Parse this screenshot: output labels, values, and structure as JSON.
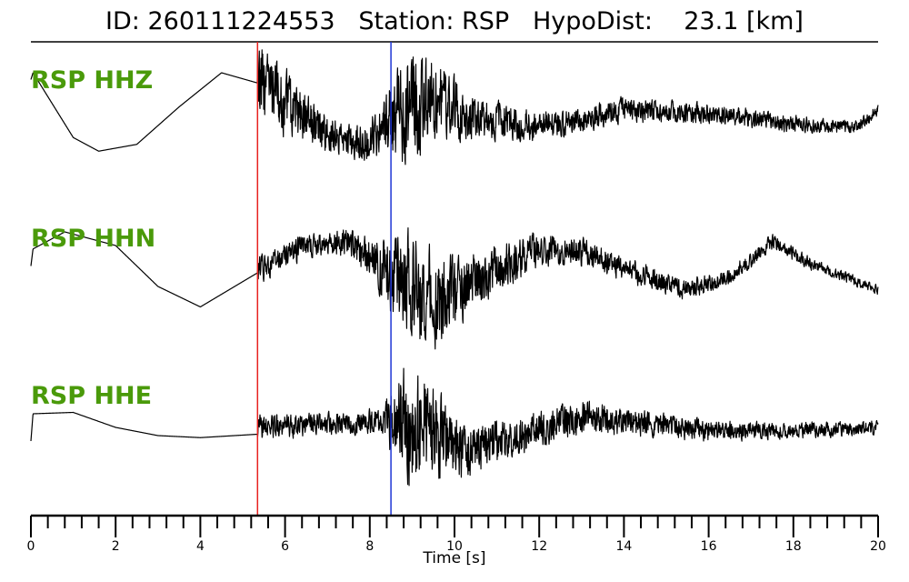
{
  "header": {
    "title": "ID: 260111224553   Station: RSP   HypoDist:    23.1 [km]"
  },
  "colors": {
    "label": "#4a9a0a",
    "trace": "#000000",
    "p_pick": "#e8211e",
    "s_pick": "#1f35d6"
  },
  "chart_data": {
    "type": "line",
    "xlabel": "Time [s]",
    "xlim": [
      0,
      20
    ],
    "x_ticks": [
      0,
      2,
      4,
      6,
      8,
      10,
      12,
      14,
      16,
      18,
      20
    ],
    "x_tick_labels": [
      "0",
      "2",
      "4",
      "6",
      "8",
      "10",
      "12",
      "14",
      "16",
      "18",
      "20"
    ],
    "minor_tick_step": 0.4,
    "picks": [
      {
        "time": 5.35,
        "color": "#e8211e"
      },
      {
        "time": 8.5,
        "color": "#1f35d6"
      }
    ],
    "series": [
      {
        "name": "RSP HHZ",
        "onset": 5.35,
        "s_time": 8.5,
        "envelope_t": [
          0,
          0.05,
          1.0,
          1.6,
          2.5,
          3.5,
          4.5,
          5.35
        ],
        "envelope_v": [
          0.5,
          0.6,
          -0.35,
          -0.55,
          -0.45,
          0.1,
          0.6,
          0.45
        ],
        "noise_t": [
          5.35,
          5.6,
          6.5,
          7.5,
          8.3,
          8.8,
          9.3,
          9.8,
          10.5,
          12.0,
          13.5,
          15.0,
          17.0,
          18.5,
          20.0
        ],
        "noise_a": [
          0.9,
          0.75,
          0.55,
          0.3,
          0.55,
          1.15,
          1.0,
          0.75,
          0.45,
          0.3,
          0.28,
          0.22,
          0.2,
          0.15,
          0.12
        ],
        "trend_t": [
          5.35,
          6.0,
          7.0,
          7.8,
          8.5,
          9.5,
          10.5,
          12.0,
          14.0,
          16.0,
          18.0,
          19.5,
          20.0
        ],
        "trend_v": [
          0.45,
          0.15,
          -0.3,
          -0.45,
          -0.1,
          0.2,
          -0.05,
          -0.2,
          0.05,
          0.0,
          -0.15,
          -0.2,
          0.05
        ]
      },
      {
        "name": "RSP HHN",
        "onset": 5.35,
        "s_time": 8.5,
        "envelope_t": [
          0,
          0.05,
          0.8,
          2.0,
          3.0,
          4.0,
          5.35
        ],
        "envelope_v": [
          0.1,
          0.35,
          0.6,
          0.4,
          -0.2,
          -0.5,
          0.0
        ],
        "noise_t": [
          5.35,
          6.0,
          7.0,
          8.0,
          8.5,
          9.0,
          9.6,
          10.5,
          12.0,
          14.0,
          16.0,
          17.5,
          20.0
        ],
        "noise_a": [
          0.3,
          0.25,
          0.25,
          0.4,
          0.85,
          1.2,
          0.95,
          0.55,
          0.35,
          0.25,
          0.2,
          0.15,
          0.1
        ],
        "trend_t": [
          5.35,
          6.5,
          7.5,
          8.5,
          9.5,
          10.5,
          12.0,
          13.0,
          14.5,
          15.5,
          16.5,
          17.5,
          18.5,
          20.0
        ],
        "trend_v": [
          0.05,
          0.4,
          0.45,
          0.0,
          -0.45,
          -0.1,
          0.35,
          0.3,
          -0.05,
          -0.25,
          -0.05,
          0.45,
          0.1,
          -0.25
        ]
      },
      {
        "name": "RSP HHE",
        "onset": 5.35,
        "s_time": 8.5,
        "envelope_t": [
          0,
          0.05,
          1.0,
          2.0,
          3.0,
          4.0,
          5.35
        ],
        "envelope_v": [
          -0.2,
          0.2,
          0.22,
          0.0,
          -0.12,
          -0.15,
          -0.1
        ],
        "noise_t": [
          5.35,
          6.0,
          7.5,
          8.3,
          8.9,
          9.5,
          10.5,
          12.0,
          13.0,
          15.0,
          17.0,
          20.0
        ],
        "noise_a": [
          0.25,
          0.25,
          0.22,
          0.3,
          1.3,
          0.95,
          0.5,
          0.4,
          0.35,
          0.25,
          0.18,
          0.15
        ],
        "trend_t": [
          5.35,
          7.0,
          8.5,
          9.5,
          10.5,
          12.0,
          13.0,
          14.5,
          16.0,
          18.0,
          20.0
        ],
        "trend_v": [
          0.0,
          0.05,
          0.1,
          -0.1,
          -0.35,
          0.0,
          0.15,
          0.05,
          -0.05,
          -0.05,
          0.0
        ]
      }
    ]
  }
}
